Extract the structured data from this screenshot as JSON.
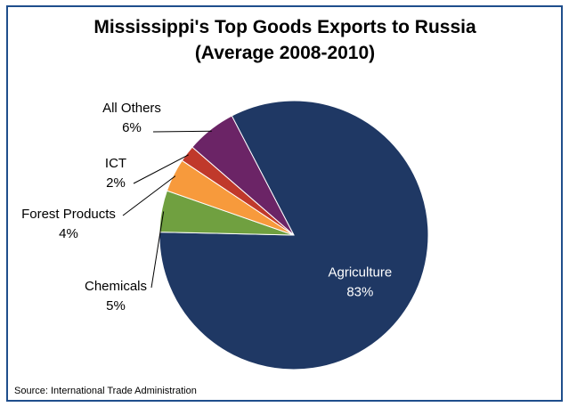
{
  "chart_data": {
    "type": "pie",
    "title": "Mississippi's Top Goods Exports to Russia",
    "subtitle": "(Average 2008-2010)",
    "slices": [
      {
        "label": "Agriculture",
        "value": 83,
        "display": "83%",
        "color": "#1f3864"
      },
      {
        "label": "Chemicals",
        "value": 5,
        "display": "5%",
        "color": "#70a040"
      },
      {
        "label": "Forest Products",
        "value": 4,
        "display": "4%",
        "color": "#f79a3c"
      },
      {
        "label": "ICT",
        "value": 2,
        "display": "2%",
        "color": "#c0392b"
      },
      {
        "label": "All Others",
        "value": 6,
        "display": "6%",
        "color": "#6b2466"
      }
    ],
    "source": "Source: International Trade Administration"
  }
}
